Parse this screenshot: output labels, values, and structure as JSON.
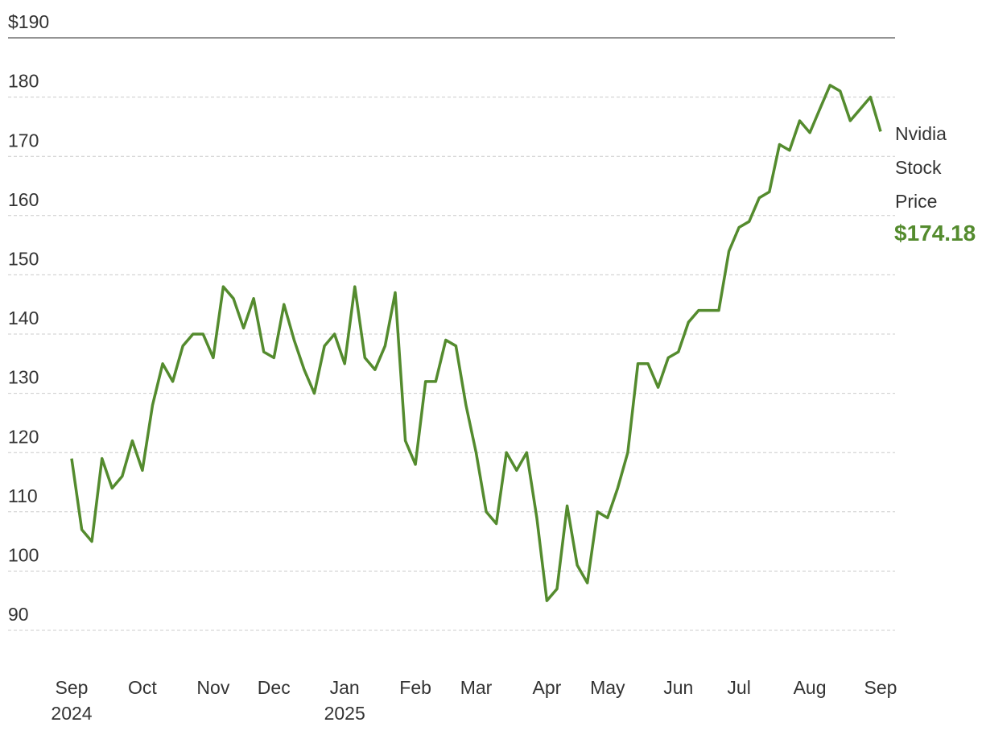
{
  "chart_data": {
    "type": "line",
    "categories": [
      "Sep 2024",
      null,
      null,
      null,
      null,
      null,
      null,
      "Oct",
      null,
      null,
      null,
      null,
      null,
      null,
      "Nov",
      null,
      null,
      null,
      null,
      null,
      "Dec",
      null,
      null,
      null,
      null,
      null,
      null,
      "Jan 2025",
      null,
      null,
      null,
      null,
      null,
      null,
      "Feb",
      null,
      null,
      null,
      null,
      null,
      "Mar",
      null,
      null,
      null,
      null,
      null,
      null,
      "Apr",
      null,
      null,
      null,
      null,
      null,
      "May",
      null,
      null,
      null,
      null,
      null,
      null,
      "Jun",
      null,
      null,
      null,
      null,
      null,
      "Jul",
      null,
      null,
      null,
      null,
      null,
      null,
      "Aug",
      null,
      null,
      null,
      null,
      null,
      null,
      "Sep"
    ],
    "series": [
      {
        "name": "Nvidia Stock Price",
        "color": "#548b2e",
        "values": [
          119,
          107,
          105,
          119,
          114,
          116,
          122,
          117,
          128,
          135,
          132,
          138,
          140,
          140,
          136,
          148,
          146,
          141,
          146,
          137,
          136,
          145,
          139,
          134,
          130,
          138,
          140,
          135,
          148,
          136,
          134,
          138,
          147,
          122,
          118,
          132,
          132,
          139,
          138,
          128,
          120,
          110,
          108,
          120,
          117,
          120,
          109,
          95,
          97,
          111,
          101,
          98,
          110,
          109,
          114,
          120,
          135,
          135,
          131,
          136,
          137,
          142,
          144,
          144,
          144,
          154,
          158,
          159,
          163,
          164,
          172,
          171,
          176,
          174,
          178,
          182,
          181,
          176,
          178,
          180,
          174.18
        ],
        "value_labels": [
          null,
          null,
          null,
          null,
          null,
          null,
          null,
          null,
          null,
          null,
          null,
          null,
          null,
          null,
          null,
          null,
          null,
          null,
          null,
          null,
          null,
          null,
          null,
          null,
          null,
          null,
          null,
          null,
          null,
          null,
          null,
          null,
          null,
          null,
          null,
          null,
          null,
          null,
          null,
          null,
          null,
          null,
          null,
          null,
          null,
          null,
          null,
          null,
          null,
          null,
          null,
          null,
          null,
          null,
          null,
          null,
          null,
          null,
          null,
          null,
          null,
          null,
          null,
          null,
          null,
          null,
          null,
          null,
          null,
          null,
          null,
          null,
          null,
          null,
          null,
          null,
          null,
          null,
          null,
          null,
          "$174.18"
        ]
      }
    ],
    "ylim": [
      90,
      190
    ],
    "yticks": [
      90,
      100,
      110,
      120,
      130,
      140,
      150,
      160,
      170,
      180,
      {
        "value": 190,
        "label": "$190"
      }
    ],
    "grid": true
  }
}
